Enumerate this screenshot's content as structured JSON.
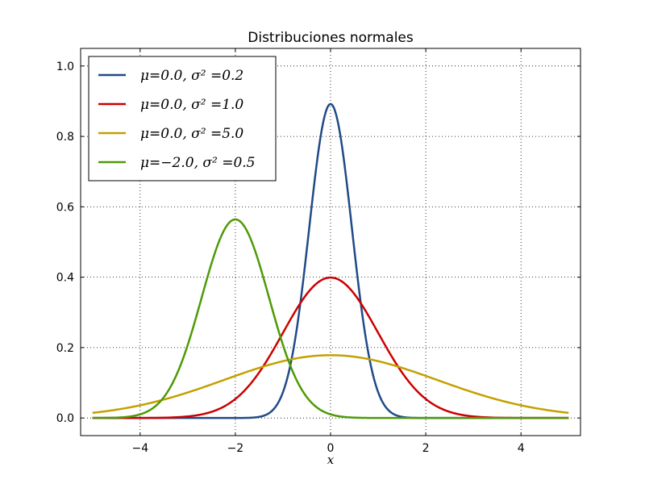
{
  "chart_data": {
    "type": "line",
    "title": "Distribuciones normales",
    "xlabel": "x",
    "ylabel": "",
    "xlim": [
      -5.25,
      5.25
    ],
    "ylim": [
      -0.05,
      1.05
    ],
    "xticks": [
      -4,
      -2,
      0,
      2,
      4
    ],
    "xtick_labels": [
      "−4",
      "−2",
      "0",
      "2",
      "4"
    ],
    "yticks": [
      0.0,
      0.2,
      0.4,
      0.6,
      0.8,
      1.0
    ],
    "ytick_labels": [
      "0.0",
      "0.2",
      "0.4",
      "0.6",
      "0.8",
      "1.0"
    ],
    "grid": true,
    "legend_position": "top-left",
    "x_range": [
      -5,
      5
    ],
    "series": [
      {
        "name": "μ=0.0, σ² =0.2",
        "mu": 0.0,
        "variance": 0.2,
        "color": "#204a87"
      },
      {
        "name": "μ=0.0, σ² =1.0",
        "mu": 0.0,
        "variance": 1.0,
        "color": "#cc0000"
      },
      {
        "name": "μ=0.0, σ² =5.0",
        "mu": 0.0,
        "variance": 5.0,
        "color": "#c4a000"
      },
      {
        "name": "μ=−2.0, σ² =0.5",
        "mu": -2.0,
        "variance": 0.5,
        "color": "#4e9a06"
      }
    ]
  }
}
